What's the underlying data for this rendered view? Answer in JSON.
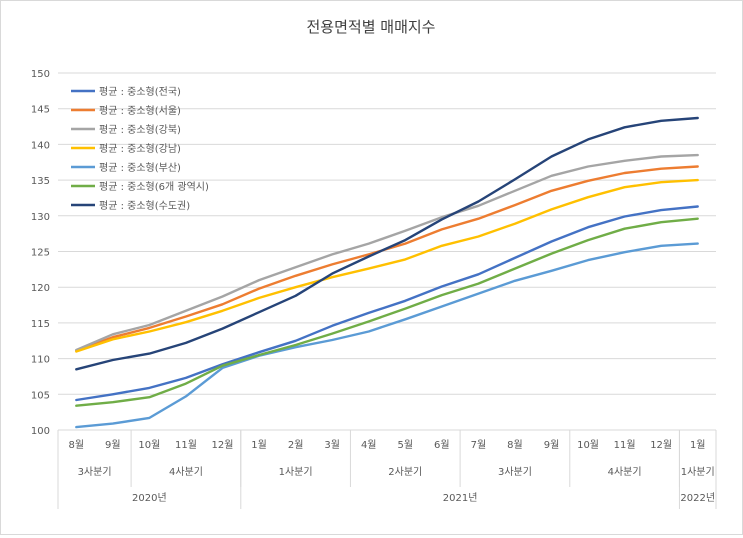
{
  "chart_data": {
    "type": "line",
    "title": "전용면적별 매매지수",
    "xlabel": "",
    "ylabel": "",
    "ylim": [
      100,
      150
    ],
    "yticks": [
      100,
      105,
      110,
      115,
      120,
      125,
      130,
      135,
      140,
      145,
      150
    ],
    "grid": true,
    "legend_position": "top-left",
    "categories": [
      "8월",
      "9월",
      "10월",
      "11월",
      "12월",
      "1월",
      "2월",
      "3월",
      "4월",
      "5월",
      "6월",
      "7월",
      "8월",
      "9월",
      "10월",
      "11월",
      "12월",
      "1월"
    ],
    "category_groups": {
      "quarters": [
        {
          "label": "3사분기",
          "span": 2
        },
        {
          "label": "4사분기",
          "span": 3
        },
        {
          "label": "1사분기",
          "span": 3
        },
        {
          "label": "2사분기",
          "span": 3
        },
        {
          "label": "3사분기",
          "span": 3
        },
        {
          "label": "4사분기",
          "span": 3
        },
        {
          "label": "1사분기",
          "span": 1
        }
      ],
      "years": [
        {
          "label": "2020년",
          "span": 5
        },
        {
          "label": "2021년",
          "span": 12
        },
        {
          "label": "2022년",
          "span": 1
        }
      ]
    },
    "series": [
      {
        "name": "평균 : 중소형(전국)",
        "color": "#4472c4",
        "values": [
          104.2,
          105.0,
          105.9,
          107.3,
          109.2,
          110.9,
          112.5,
          114.6,
          116.4,
          118.1,
          120.1,
          121.8,
          124.1,
          126.4,
          128.4,
          129.9,
          130.8,
          131.3
        ]
      },
      {
        "name": "평균 : 중소형(서울)",
        "color": "#ed7d31",
        "values": [
          111.1,
          113.0,
          114.3,
          115.9,
          117.6,
          119.8,
          121.6,
          123.2,
          124.6,
          126.1,
          128.1,
          129.6,
          131.5,
          133.5,
          134.9,
          136.0,
          136.6,
          136.9
        ]
      },
      {
        "name": "평균 : 중소형(강북)",
        "color": "#a5a5a5",
        "values": [
          111.2,
          113.4,
          114.7,
          116.7,
          118.7,
          121.0,
          122.8,
          124.6,
          126.1,
          127.9,
          129.8,
          131.4,
          133.5,
          135.6,
          136.9,
          137.7,
          138.3,
          138.5
        ]
      },
      {
        "name": "평균 : 중소형(강남)",
        "color": "#ffc000",
        "values": [
          111.0,
          112.7,
          113.8,
          115.1,
          116.7,
          118.5,
          120.0,
          121.4,
          122.6,
          123.9,
          125.8,
          127.1,
          128.9,
          130.9,
          132.6,
          134.0,
          134.7,
          135.0
        ]
      },
      {
        "name": "평균 : 중소형(부산)",
        "color": "#5b9bd5",
        "values": [
          100.4,
          100.9,
          101.7,
          104.7,
          108.7,
          110.4,
          111.6,
          112.6,
          113.8,
          115.5,
          117.3,
          119.1,
          120.9,
          122.3,
          123.8,
          124.9,
          125.8,
          126.1
        ]
      },
      {
        "name": "평균 : 중소형(6개 광역시)",
        "color": "#70ad47",
        "values": [
          103.4,
          103.9,
          104.6,
          106.5,
          109.0,
          110.5,
          111.9,
          113.5,
          115.2,
          117.0,
          118.9,
          120.5,
          122.6,
          124.7,
          126.6,
          128.2,
          129.1,
          129.6
        ]
      },
      {
        "name": "평균 : 중소형(수도권)",
        "color": "#264478",
        "values": [
          108.5,
          109.8,
          110.7,
          112.2,
          114.2,
          116.5,
          118.8,
          121.9,
          124.3,
          126.6,
          129.5,
          132.0,
          135.1,
          138.3,
          140.7,
          142.4,
          143.3,
          143.7
        ]
      }
    ]
  }
}
